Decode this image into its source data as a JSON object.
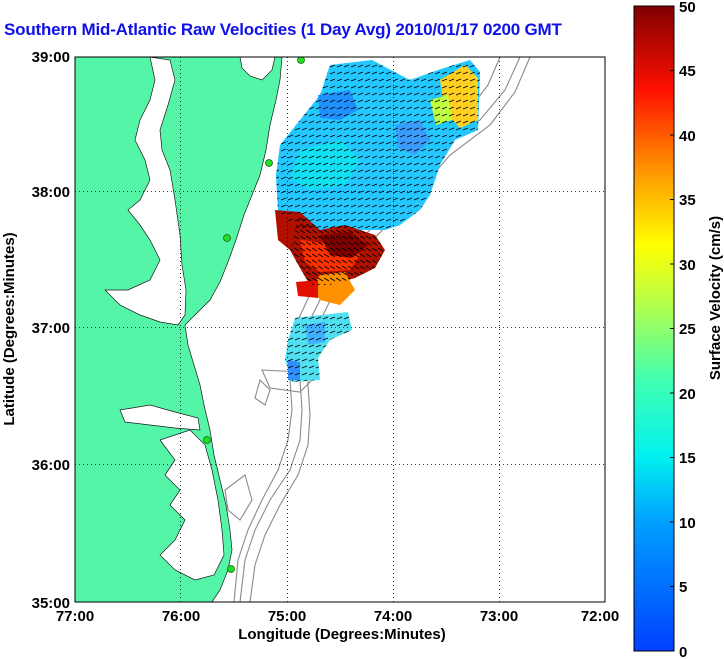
{
  "title": "Southern Mid-Atlantic Raw Velocities (1 Day Avg) 2010/01/17 0200 GMT",
  "map": {
    "xlabel": "Longitude (Degrees:Minutes)",
    "ylabel": "Latitude (Degrees:Minutes)",
    "x_ticks": [
      "77:00",
      "76:00",
      "75:00",
      "74:00",
      "73:00",
      "72:00"
    ],
    "y_ticks": [
      "39:00",
      "38:00",
      "37:00",
      "36:00",
      "35:00"
    ],
    "land_color": "#55f5a8",
    "water_color": "#ffffff",
    "grid": "dotted"
  },
  "colorbar": {
    "label": "Surface Velocity (cm/s)",
    "ticks": [
      "0",
      "5",
      "10",
      "15",
      "20",
      "25",
      "30",
      "35",
      "40",
      "45",
      "50"
    ],
    "range": [
      0,
      50
    ],
    "colormap": "jet"
  }
}
